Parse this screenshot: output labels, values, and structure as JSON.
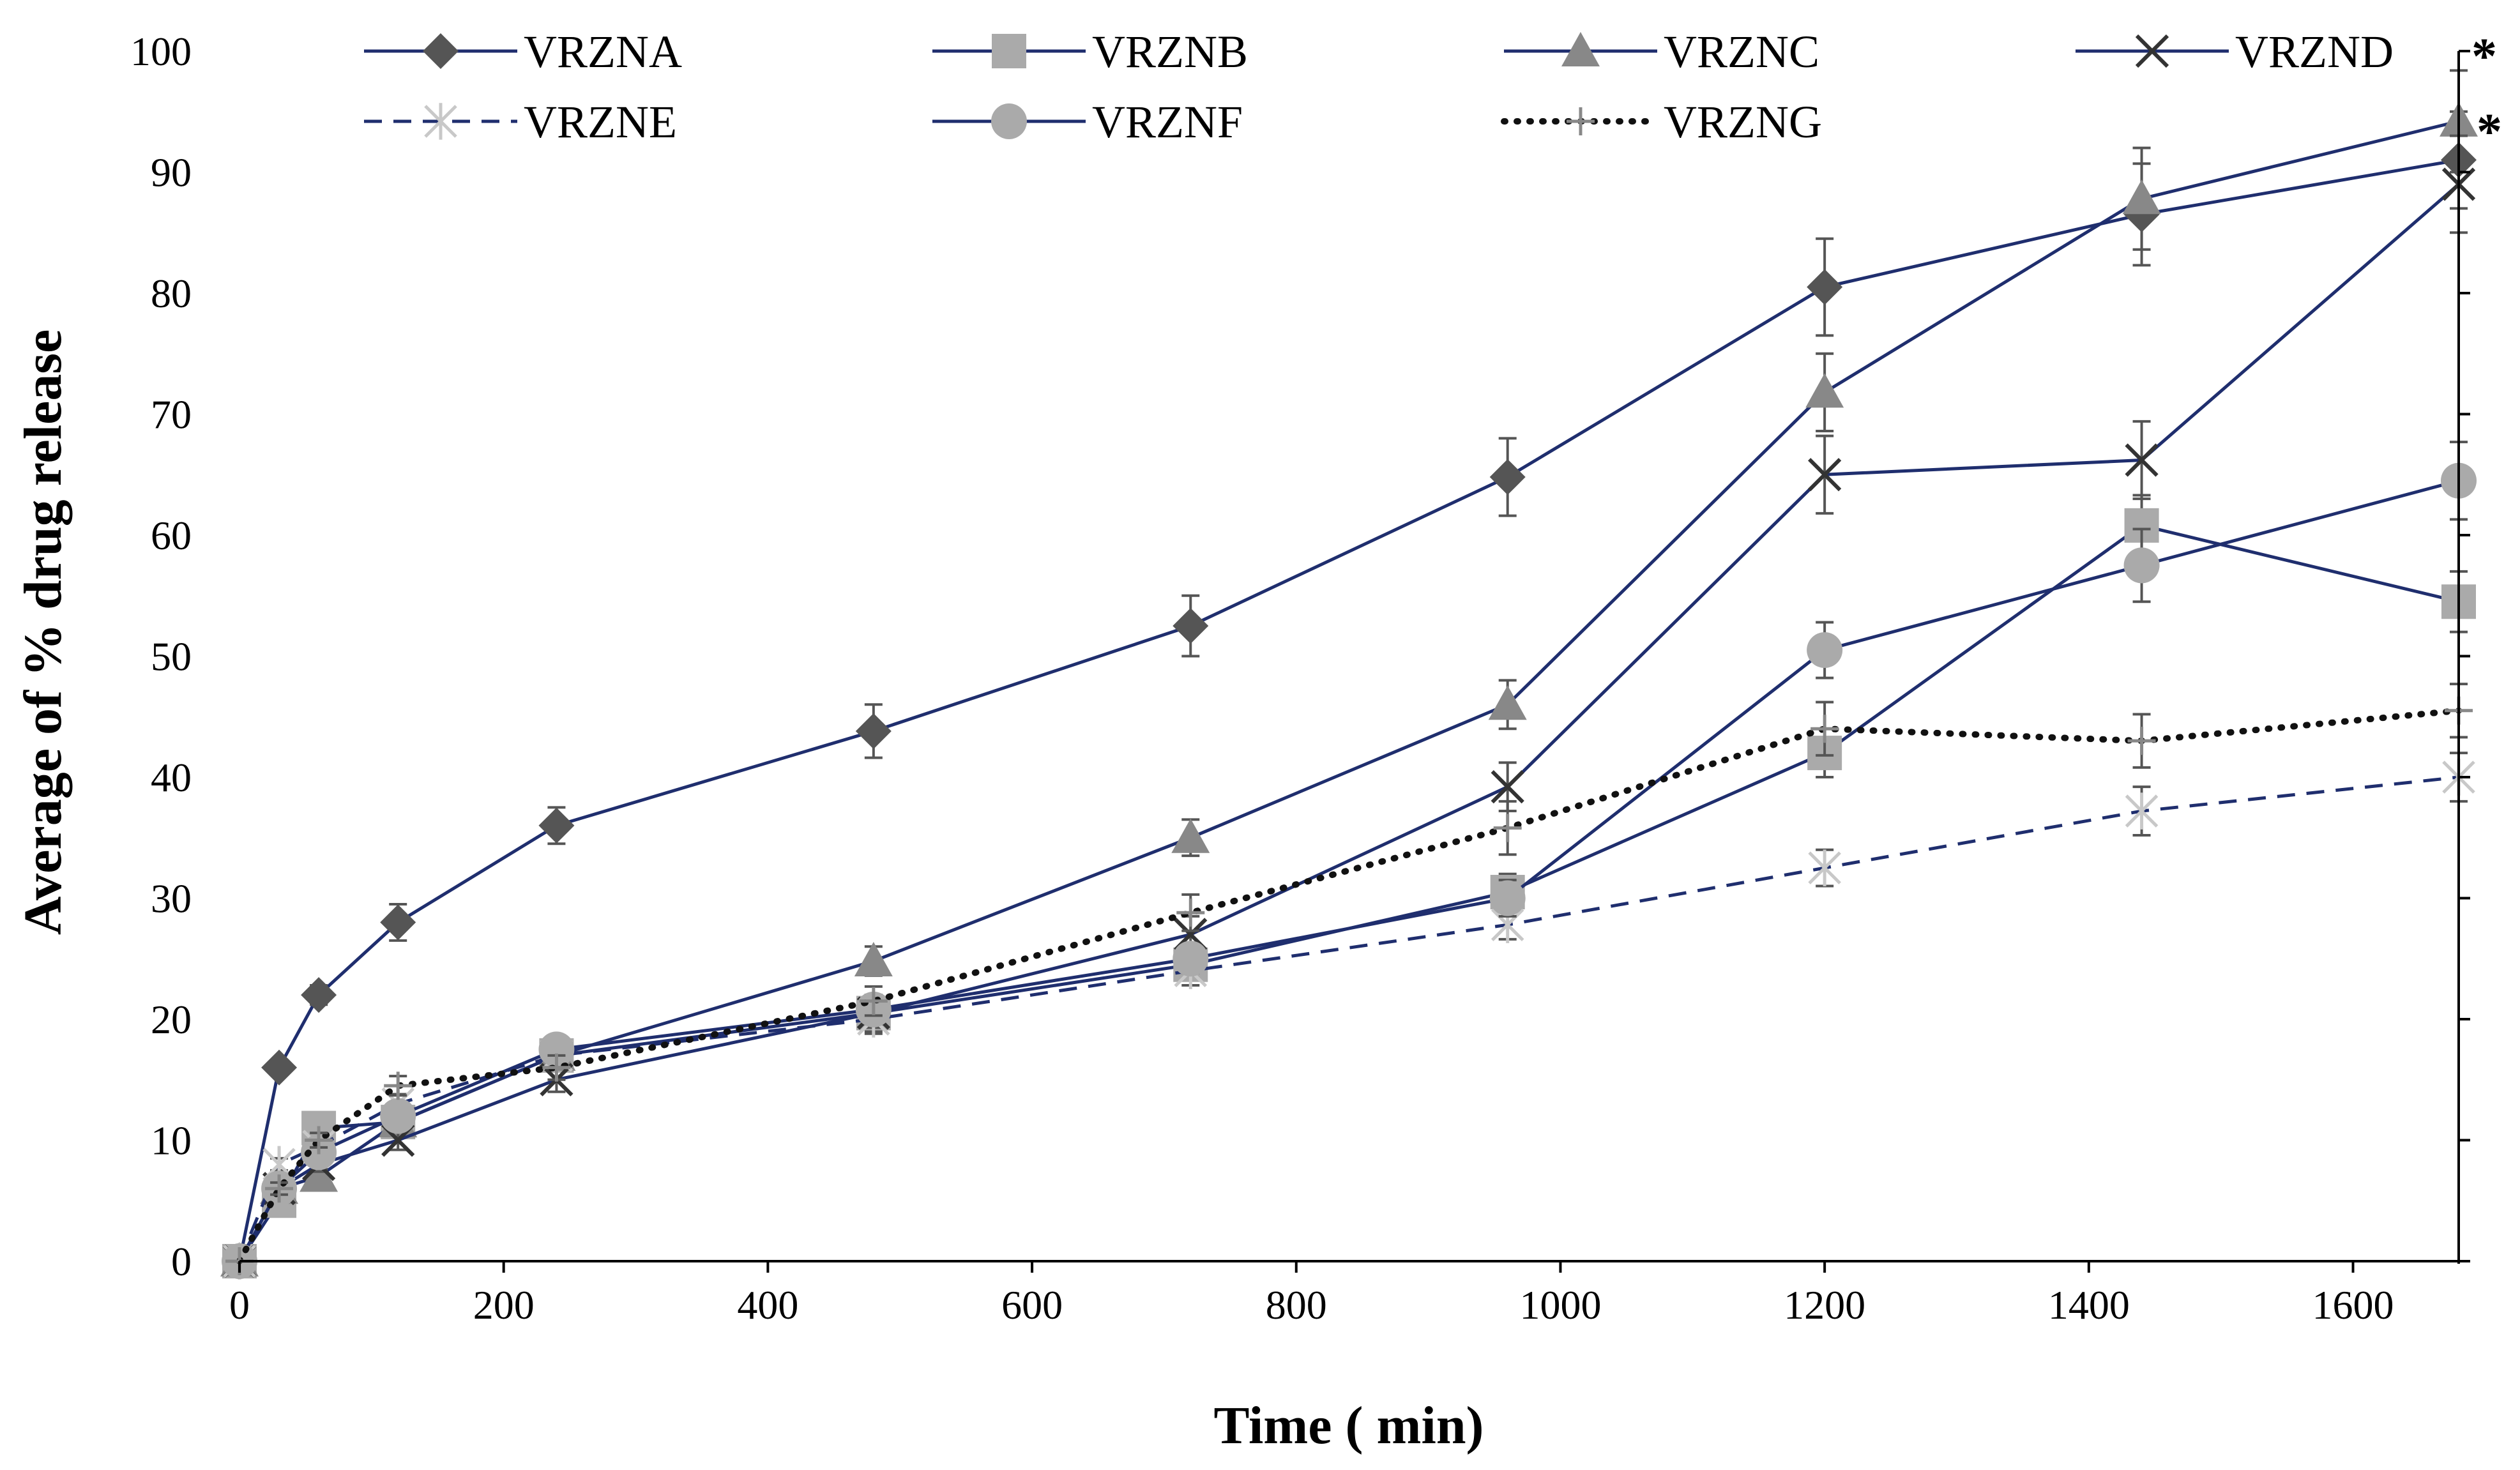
{
  "chart_data": {
    "type": "line",
    "title": "",
    "xlabel": "Time ( min)",
    "ylabel": "Average of % drug release",
    "xlim": [
      0,
      1680
    ],
    "ylim": [
      0,
      100
    ],
    "x_ticks": [
      0,
      200,
      400,
      600,
      800,
      1000,
      1200,
      1400,
      1600
    ],
    "y_ticks": [
      0,
      10,
      20,
      30,
      40,
      50,
      60,
      70,
      80,
      90,
      100
    ],
    "grid": false,
    "legend_position": "top",
    "x": [
      0,
      30,
      60,
      120,
      240,
      480,
      720,
      960,
      1200,
      1440,
      1680
    ],
    "colors": {
      "line": "#1F2E6E",
      "dark_marker": "#555555",
      "mid_marker": "#888888",
      "light_marker": "#AAAAAA",
      "pale_marker": "#C8C8C8",
      "error_bar": "#555555"
    },
    "series": [
      {
        "name": "VRZNA",
        "marker": "diamond",
        "dash": "solid",
        "values": [
          0,
          16,
          22,
          28,
          36,
          43.8,
          52.5,
          64.8,
          80.5,
          86.5,
          91
        ],
        "errors": [
          0,
          0.5,
          0.8,
          1.5,
          1.5,
          2.2,
          2.5,
          3.2,
          4,
          4.2,
          4
        ]
      },
      {
        "name": "VRZNB",
        "marker": "square",
        "dash": "solid",
        "values": [
          0,
          5,
          11,
          11.5,
          17,
          20.5,
          24.5,
          30.5,
          42,
          60.8,
          54.5
        ],
        "errors": [
          0,
          0.5,
          0.8,
          1,
          1.2,
          1.5,
          1.2,
          1.5,
          2,
          2.5,
          2.5
        ]
      },
      {
        "name": "VRZNC",
        "marker": "triangle",
        "dash": "solid",
        "values": [
          0,
          6,
          7,
          11.5,
          17,
          24.8,
          35,
          46,
          71.8,
          87.8,
          94.2
        ],
        "errors": [
          0,
          0.5,
          0.6,
          0.8,
          1,
          1.2,
          1.5,
          2,
          3.2,
          4.2,
          4.2
        ]
      },
      {
        "name": "VRZND",
        "marker": "x",
        "dash": "solid",
        "values": [
          0,
          6,
          8,
          10,
          15,
          20.5,
          27,
          39.2,
          65,
          66.2,
          89
        ],
        "errors": [
          0,
          0.5,
          0.6,
          0.8,
          1,
          1.2,
          1.5,
          2,
          3.2,
          3.2,
          4
        ]
      },
      {
        "name": "VRZNE",
        "marker": "asterisk",
        "dash": "dashed",
        "values": [
          0,
          8,
          9.5,
          13,
          17,
          20,
          24,
          27.8,
          32.5,
          37.2,
          40
        ],
        "errors": [
          0,
          0.5,
          0.6,
          0.8,
          1,
          1.2,
          1.2,
          1.2,
          1.5,
          2,
          2
        ]
      },
      {
        "name": "VRZNF",
        "marker": "circle",
        "dash": "solid",
        "values": [
          0,
          6,
          9,
          12,
          17.5,
          20.8,
          25,
          30,
          50.5,
          57.5,
          64.5
        ],
        "errors": [
          0,
          0.5,
          0.6,
          0.8,
          1,
          1.2,
          1.2,
          1.5,
          2.3,
          3,
          3.2
        ]
      },
      {
        "name": "VRZNG",
        "marker": "plus",
        "dash": "dotted",
        "values": [
          0,
          6,
          10,
          14.5,
          16,
          21.5,
          28.8,
          35.8,
          44,
          43,
          45.5
        ],
        "errors": [
          0,
          0.5,
          0.6,
          0.8,
          1,
          1.2,
          1.5,
          2.2,
          2.2,
          2.2,
          2.2
        ]
      }
    ],
    "annotations": [
      {
        "text": "*",
        "x": 1680,
        "y": 93.5,
        "series": "VRZNA"
      },
      {
        "text": "*",
        "series_legend": "VRZND"
      }
    ]
  }
}
